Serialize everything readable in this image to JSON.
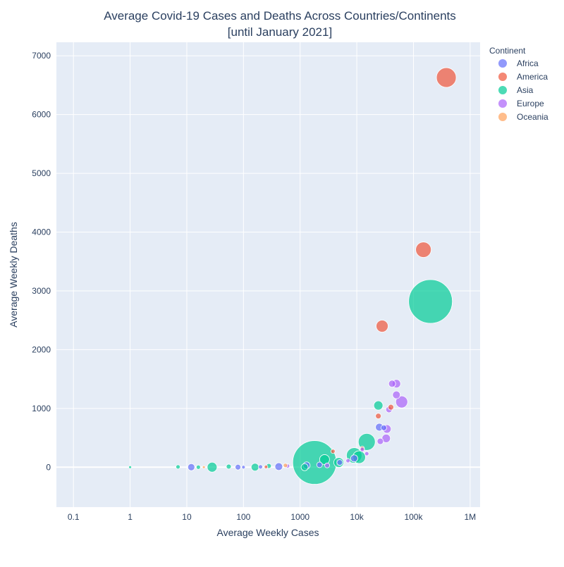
{
  "chart_data": {
    "type": "scatter",
    "title_line1": "Average Covid-19 Cases and Deaths Across Countries/Continents",
    "title_line2": "[until January 2021]",
    "xlabel": "Average Weekly Cases",
    "ylabel": "Average Weekly Deaths",
    "x_scale": "log",
    "xlim": [
      0.05,
      1500000
    ],
    "ylim": [
      -680,
      7230
    ],
    "x_ticks": [
      {
        "value": 0.1,
        "label": "0.1"
      },
      {
        "value": 1,
        "label": "1"
      },
      {
        "value": 10,
        "label": "10"
      },
      {
        "value": 100,
        "label": "100"
      },
      {
        "value": 1000,
        "label": "1000"
      },
      {
        "value": 10000,
        "label": "10k"
      },
      {
        "value": 100000,
        "label": "100k"
      },
      {
        "value": 1000000,
        "label": "1M"
      }
    ],
    "y_ticks": [
      {
        "value": 0,
        "label": "0"
      },
      {
        "value": 1000,
        "label": "1000"
      },
      {
        "value": 2000,
        "label": "2000"
      },
      {
        "value": 3000,
        "label": "3000"
      },
      {
        "value": 4000,
        "label": "4000"
      },
      {
        "value": 5000,
        "label": "5000"
      },
      {
        "value": 6000,
        "label": "6000"
      },
      {
        "value": 7000,
        "label": "7000"
      }
    ],
    "grid": true,
    "legend_title": "Continent",
    "legend_position": "top-right",
    "series": [
      {
        "name": "Africa",
        "color": "#636efa",
        "points": [
          {
            "x": 12,
            "y": 0,
            "s": 10
          },
          {
            "x": 80,
            "y": 0,
            "s": 8
          },
          {
            "x": 100,
            "y": 0,
            "s": 5
          },
          {
            "x": 200,
            "y": 5,
            "s": 6
          },
          {
            "x": 420,
            "y": 10,
            "s": 11
          },
          {
            "x": 1300,
            "y": 30,
            "s": 10
          },
          {
            "x": 2200,
            "y": 40,
            "s": 8
          },
          {
            "x": 5000,
            "y": 80,
            "s": 8
          },
          {
            "x": 9000,
            "y": 150,
            "s": 10
          },
          {
            "x": 25000,
            "y": 680,
            "s": 11
          },
          {
            "x": 30000,
            "y": 670,
            "s": 8
          }
        ]
      },
      {
        "name": "America",
        "color": "#ef553b",
        "points": [
          {
            "x": 250,
            "y": 5,
            "s": 5
          },
          {
            "x": 3800,
            "y": 270,
            "s": 6
          },
          {
            "x": 12500,
            "y": 320,
            "s": 6
          },
          {
            "x": 24000,
            "y": 870,
            "s": 8
          },
          {
            "x": 28000,
            "y": 2400,
            "s": 17
          },
          {
            "x": 40000,
            "y": 1020,
            "s": 8
          },
          {
            "x": 150000,
            "y": 3700,
            "s": 22
          },
          {
            "x": 380000,
            "y": 6630,
            "s": 28
          }
        ]
      },
      {
        "name": "Asia",
        "color": "#00cc96",
        "points": [
          {
            "x": 1,
            "y": 0,
            "s": 4
          },
          {
            "x": 7,
            "y": 5,
            "s": 6
          },
          {
            "x": 16,
            "y": 0,
            "s": 6
          },
          {
            "x": 28,
            "y": 0,
            "s": 14
          },
          {
            "x": 55,
            "y": 10,
            "s": 7
          },
          {
            "x": 160,
            "y": 0,
            "s": 11
          },
          {
            "x": 280,
            "y": 20,
            "s": 7
          },
          {
            "x": 1200,
            "y": 0,
            "s": 10
          },
          {
            "x": 1800,
            "y": 80,
            "s": 62
          },
          {
            "x": 2700,
            "y": 130,
            "s": 14
          },
          {
            "x": 4800,
            "y": 80,
            "s": 14
          },
          {
            "x": 9000,
            "y": 200,
            "s": 22
          },
          {
            "x": 11000,
            "y": 170,
            "s": 18
          },
          {
            "x": 15000,
            "y": 430,
            "s": 24
          },
          {
            "x": 24000,
            "y": 1050,
            "s": 13
          },
          {
            "x": 200000,
            "y": 2820,
            "s": 62
          }
        ]
      },
      {
        "name": "Europe",
        "color": "#ab63fa",
        "points": [
          {
            "x": 600,
            "y": 20,
            "s": 6
          },
          {
            "x": 3000,
            "y": 30,
            "s": 7
          },
          {
            "x": 7000,
            "y": 110,
            "s": 6
          },
          {
            "x": 12500,
            "y": 300,
            "s": 6
          },
          {
            "x": 15000,
            "y": 230,
            "s": 6
          },
          {
            "x": 26000,
            "y": 440,
            "s": 9
          },
          {
            "x": 33000,
            "y": 490,
            "s": 12
          },
          {
            "x": 34000,
            "y": 650,
            "s": 12
          },
          {
            "x": 37000,
            "y": 980,
            "s": 9
          },
          {
            "x": 42000,
            "y": 1420,
            "s": 10
          },
          {
            "x": 50000,
            "y": 1420,
            "s": 12
          },
          {
            "x": 50000,
            "y": 1230,
            "s": 11
          },
          {
            "x": 62000,
            "y": 1110,
            "s": 17
          }
        ]
      },
      {
        "name": "Oceania",
        "color": "#ffa15a",
        "points": [
          {
            "x": 20,
            "y": 0,
            "s": 4
          },
          {
            "x": 550,
            "y": 30,
            "s": 6
          }
        ]
      }
    ]
  }
}
